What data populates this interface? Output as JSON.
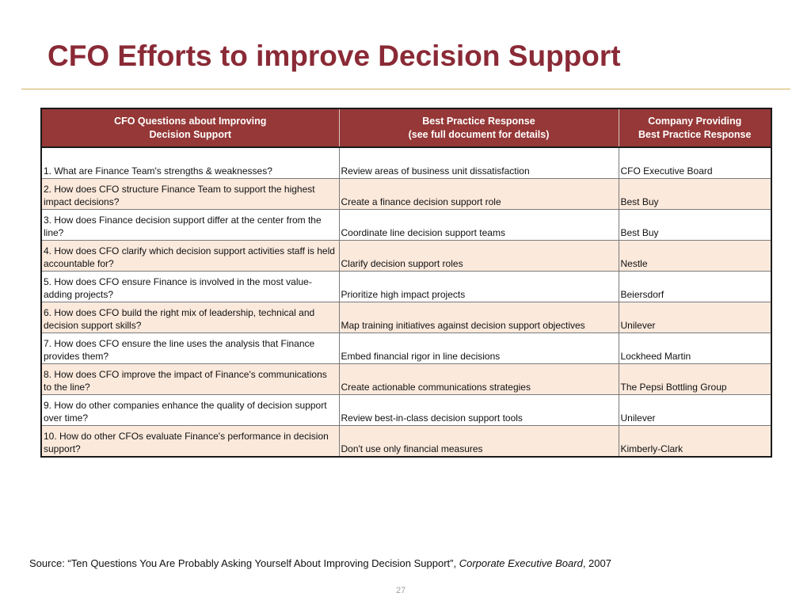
{
  "title": "CFO Efforts to improve Decision Support",
  "table": {
    "headers": [
      [
        "CFO Questions about Improving",
        "Decision Support"
      ],
      [
        "Best Practice Response",
        "(see full document for details)"
      ],
      [
        "Company Providing",
        "Best Practice Response"
      ]
    ],
    "rows": [
      [
        "1.  What are Finance Team's strengths & weaknesses?",
        "Review areas of business unit dissatisfaction",
        "CFO Executive Board"
      ],
      [
        "2.  How does CFO structure Finance Team to support the highest impact decisions?",
        "Create a finance decision support role",
        "Best Buy"
      ],
      [
        "3.  How does Finance decision support differ at the center from the line?",
        "Coordinate line decision support teams",
        "Best Buy"
      ],
      [
        "4.  How does CFO clarify which decision support activities staff is held accountable for?",
        "Clarify decision support roles",
        "Nestle"
      ],
      [
        "5.  How does CFO ensure Finance is involved in the most value-adding projects?",
        "Prioritize high impact projects",
        "Beiersdorf"
      ],
      [
        "6.  How does CFO build the right mix of leadership, technical and decision support skills?",
        "Map training initiatives against decision support objectives",
        "Unilever"
      ],
      [
        "7.  How does CFO ensure the line uses the analysis that Finance provides them?",
        "Embed financial rigor in line decisions",
        "Lockheed Martin"
      ],
      [
        "8.  How does CFO improve the impact of Finance's communications to the line?",
        "Create actionable communications strategies",
        "The Pepsi Bottling Group"
      ],
      [
        "9.  How do other companies enhance the quality of decision support over time?",
        "Review best-in-class decision support tools",
        "Unilever"
      ],
      [
        "10.  How do other CFOs evaluate Finance's performance in decision support?",
        "Don't use only financial measures",
        "Kimberly-Clark"
      ]
    ]
  },
  "source": {
    "prefix": "Source:  “Ten Questions You Are Probably Asking Yourself About Improving Decision Support”, ",
    "publication": "Corporate Executive Board",
    "suffix": ", 2007"
  },
  "page_number": "27",
  "colors": {
    "title": "#8a2a36",
    "header_bg": "#953837",
    "row_alt_bg": "#fbe9dc",
    "rule": "#d4b25a"
  }
}
